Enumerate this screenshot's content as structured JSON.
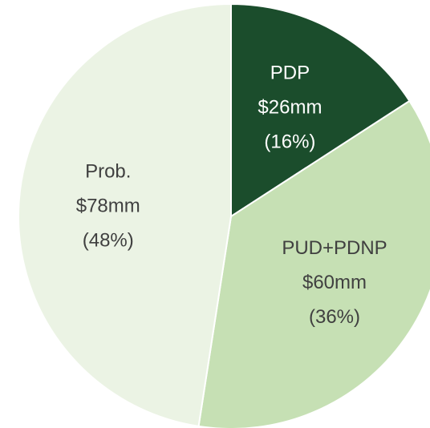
{
  "chart_data": {
    "type": "pie",
    "categories": [
      "PDP",
      "PUD+PDNP",
      "Prob."
    ],
    "values": [
      26,
      60,
      78
    ],
    "value_labels": [
      "$26mm",
      "$60mm",
      "$78mm"
    ],
    "percent_labels": [
      "(16%)",
      "(36%)",
      "(48%)"
    ],
    "colors": [
      "#1b4d2c",
      "#c6e0b4",
      "#ebf3e4"
    ]
  }
}
